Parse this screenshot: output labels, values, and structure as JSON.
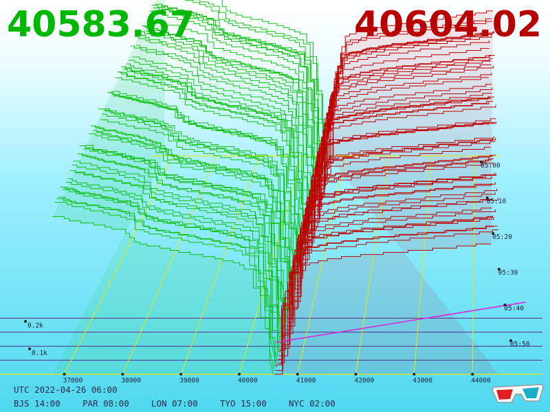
{
  "header": {
    "bid_price": "40583.67",
    "ask_price": "40604.02"
  },
  "timezones": {
    "utc_label": "UTC 2022-04-26 06:00",
    "zones": [
      {
        "label": "BJS 14:00"
      },
      {
        "label": "PAR 08:00"
      },
      {
        "label": "LON 07:00"
      },
      {
        "label": "TYO 15:00"
      },
      {
        "label": "NYC 02:00"
      }
    ]
  },
  "colors": {
    "bid": "#00b800",
    "ask": "#b80000",
    "bid_line": "#10c010",
    "ask_line": "#c00000",
    "grid_yellow": "#e8e800",
    "grid_purple": "#5a2a8a",
    "grid_magenta": "#e020e0",
    "label": "#1e1e3c"
  },
  "icons": {
    "glasses": "3d-glasses-icon"
  },
  "chart_data": {
    "type": "3d-depth-chart",
    "x_ticks": [
      "37000",
      "38000",
      "39000",
      "40000",
      "41000",
      "42000",
      "43000",
      "44000"
    ],
    "depth_ticks": [
      "0.1k",
      "0.2k"
    ],
    "time_ticks": [
      "05:00",
      "05:10",
      "05:20",
      "05:30",
      "05:40",
      "05:50"
    ],
    "bid_price": 40583.67,
    "ask_price": 40604.02,
    "snapshot_count": 60,
    "bid_depth_profile": {
      "price": [
        36800,
        37000,
        37500,
        38000,
        38200,
        38500,
        39000,
        39500,
        40000,
        40200,
        40400,
        40583.67
      ],
      "depth": [
        245,
        240,
        232,
        222,
        205,
        198,
        190,
        182,
        172,
        150,
        75,
        0
      ]
    },
    "ask_depth_profile": {
      "price": [
        40604.02,
        40700,
        40900,
        41000,
        41500,
        42000,
        42500,
        43000,
        43500,
        44000,
        44500
      ],
      "depth": [
        0,
        90,
        150,
        170,
        178,
        184,
        188,
        192,
        196,
        200,
        205
      ]
    }
  }
}
